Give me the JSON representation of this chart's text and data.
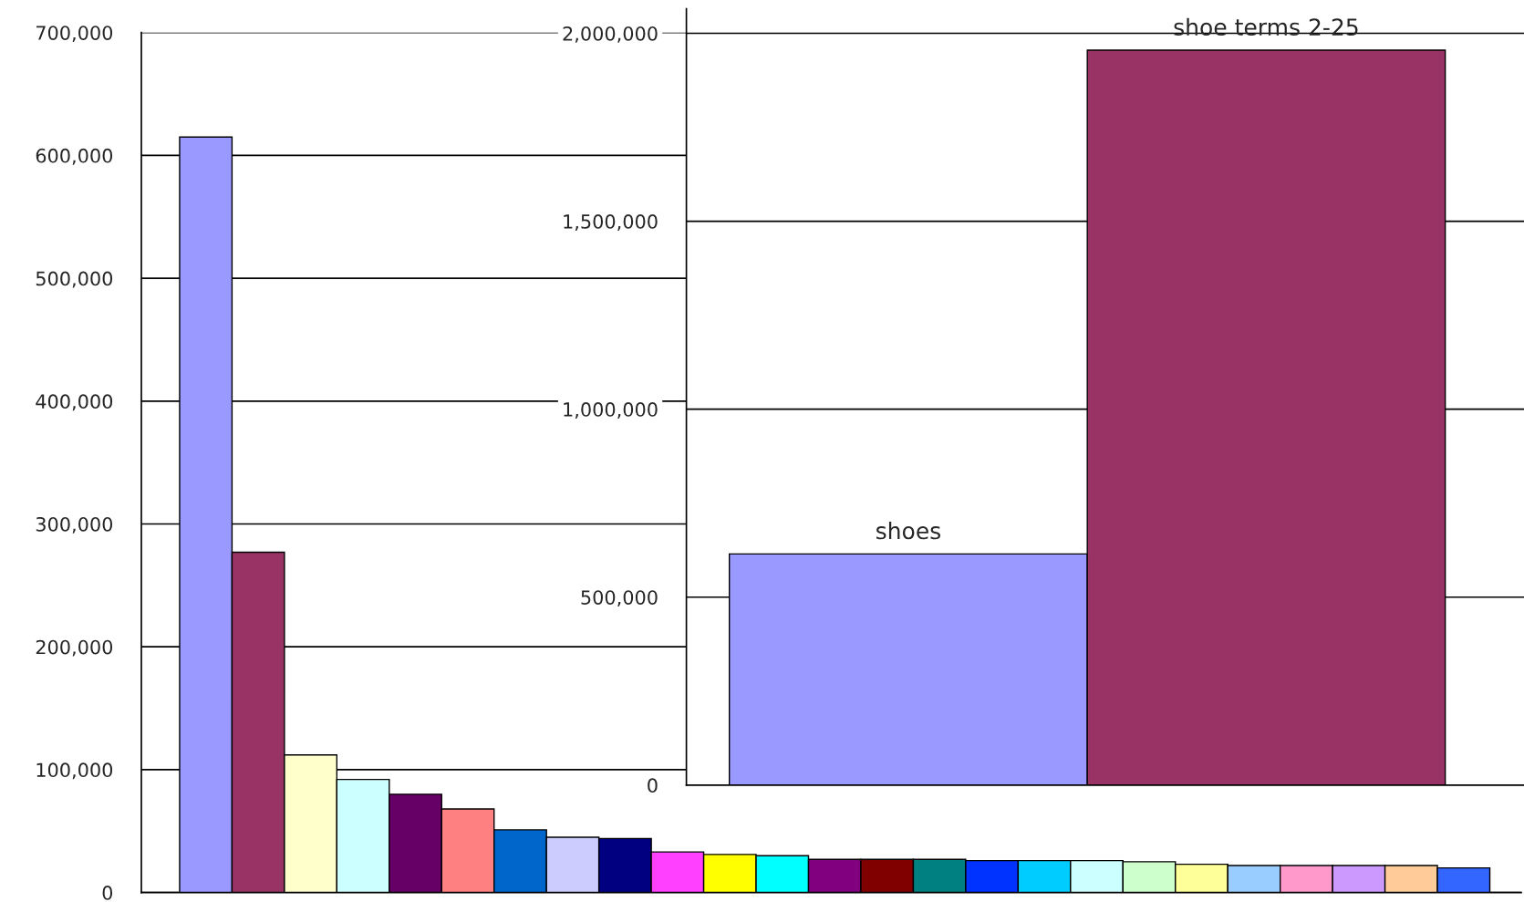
{
  "chart_data": [
    {
      "type": "bar",
      "categories": [
        null,
        null,
        null,
        null,
        null,
        null,
        null,
        null,
        null,
        null,
        null,
        null,
        null,
        null,
        null,
        null,
        null,
        null,
        null,
        null,
        null,
        null,
        null,
        null,
        null
      ],
      "values": [
        615000,
        277000,
        112000,
        92000,
        80000,
        68000,
        51000,
        45000,
        44000,
        33000,
        31000,
        30000,
        27000,
        27000,
        27000,
        26000,
        26000,
        26000,
        25000,
        23000,
        22000,
        22000,
        22000,
        22000,
        20000
      ],
      "colors": [
        "#9999ff",
        "#993366",
        "#ffffcc",
        "#ccffff",
        "#660066",
        "#ff8080",
        "#0066cc",
        "#ccccff",
        "#000080",
        "#ff40ff",
        "#ffff00",
        "#00ffff",
        "#800080",
        "#800000",
        "#008080",
        "#0033ff",
        "#00ccff",
        "#ccffff",
        "#ccffcc",
        "#ffff99",
        "#99ccff",
        "#ff99cc",
        "#cc99ff",
        "#ffcc99",
        "#3366ff"
      ],
      "ylim": [
        0,
        700000
      ],
      "yticks": [
        {
          "value": 0,
          "label": "0"
        },
        {
          "value": 100000,
          "label": "100,000"
        },
        {
          "value": 200000,
          "label": "200,000"
        },
        {
          "value": 300000,
          "label": "300,000"
        },
        {
          "value": 400000,
          "label": "400,000"
        },
        {
          "value": 500000,
          "label": "500,000"
        },
        {
          "value": 600000,
          "label": "600,000"
        },
        {
          "value": 700000,
          "label": "700,000"
        }
      ],
      "grid": "y",
      "tick_labels": "y"
    },
    {
      "type": "bar",
      "categories": [
        "shoes",
        "shoe terms 2-25"
      ],
      "values": [
        615000,
        1955000
      ],
      "colors": [
        "#9999ff",
        "#993366"
      ],
      "ylim": [
        0,
        2065000
      ],
      "yticks": [
        {
          "value": 0,
          "label": "0"
        },
        {
          "value": 500000,
          "label": "500,000"
        },
        {
          "value": 1000000,
          "label": "1,000,000"
        },
        {
          "value": 1500000,
          "label": "1,500,000"
        },
        {
          "value": 2000000,
          "label": "2,000,000"
        }
      ],
      "grid": "y",
      "tick_labels": "y"
    }
  ]
}
